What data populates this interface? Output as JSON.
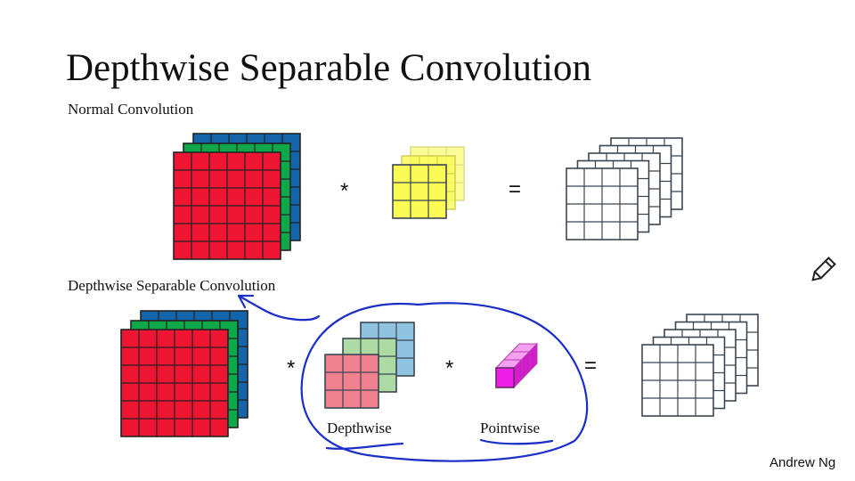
{
  "slide": {
    "title": "Depthwise Separable Convolution",
    "section_normal": "Normal Convolution",
    "section_depthwise": "Depthwise Separable Convolution",
    "author": "Andrew Ng"
  },
  "diagram": {
    "normal": {
      "op1": "*",
      "op2": "="
    },
    "separable": {
      "op1": "*",
      "op2": "*",
      "op3": "=",
      "depthwise_label": "Depthwise",
      "pointwise_label": "Pointwise"
    }
  },
  "colors": {
    "red": "#ee1533",
    "green": "#0da84a",
    "blue": "#1364a8",
    "yellow": "#fbfb55",
    "pink": "#f08290",
    "light_green": "#acdba3",
    "light_blue": "#90c3e0",
    "magenta": "#ee1ee6",
    "grid_line": "#3b4552",
    "annotation": "#1a2fc8"
  },
  "icons": {
    "pen": "pencil-icon"
  }
}
